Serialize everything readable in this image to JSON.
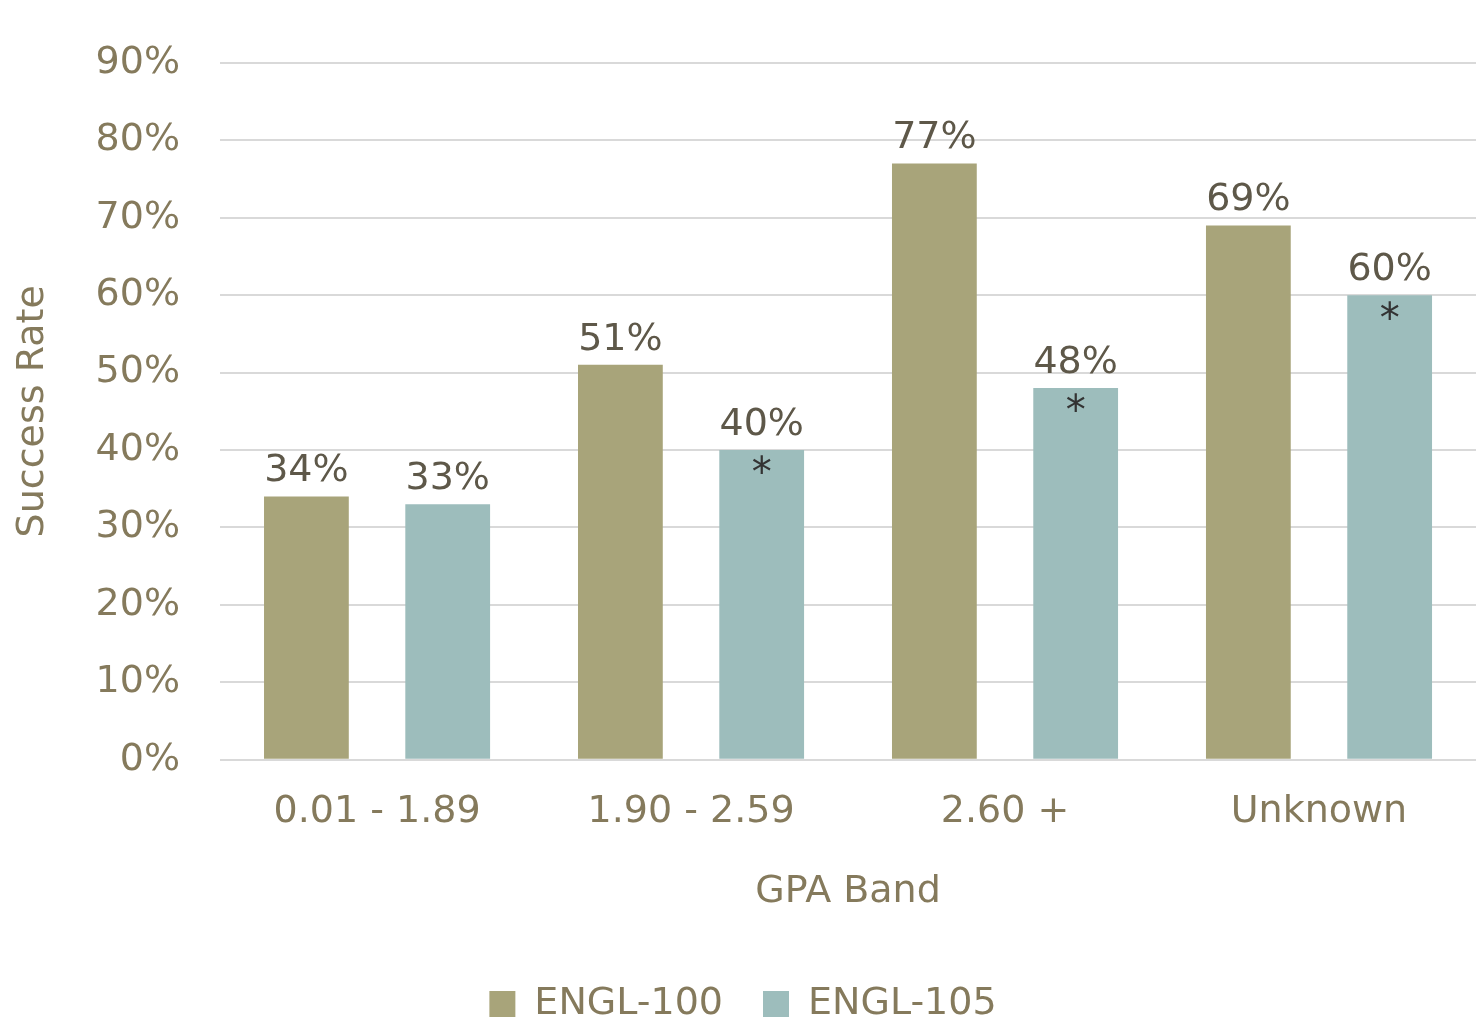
{
  "chart_data": {
    "type": "bar",
    "xlabel": "GPA Band",
    "ylabel": "Success Rate",
    "categories": [
      "0.01 - 1.89",
      "1.90 - 2.59",
      "2.60 +",
      "Unknown"
    ],
    "series": [
      {
        "name": "ENGL-100",
        "color": "#a8a47a",
        "values": [
          34,
          51,
          77,
          69
        ],
        "value_labels": [
          "34%",
          "51%",
          "77%",
          "69%"
        ]
      },
      {
        "name": "ENGL-105",
        "color": "#9dbdbc",
        "values": [
          33,
          40,
          48,
          60
        ],
        "value_labels": [
          "33%",
          "40%",
          "48%",
          "60%"
        ]
      }
    ],
    "ylim": [
      0,
      90
    ],
    "yticks": [
      {
        "value": 0,
        "label": "0%"
      },
      {
        "value": 10,
        "label": "10%"
      },
      {
        "value": 20,
        "label": "20%"
      },
      {
        "value": 30,
        "label": "30%"
      },
      {
        "value": 40,
        "label": "40%"
      },
      {
        "value": 50,
        "label": "50%"
      },
      {
        "value": 60,
        "label": "60%"
      },
      {
        "value": 70,
        "label": "70%"
      },
      {
        "value": 80,
        "label": "80%"
      },
      {
        "value": 90,
        "label": "90%"
      }
    ],
    "grid": "y",
    "legend": "bottom",
    "annotations": [
      "*",
      "*",
      "*"
    ]
  }
}
